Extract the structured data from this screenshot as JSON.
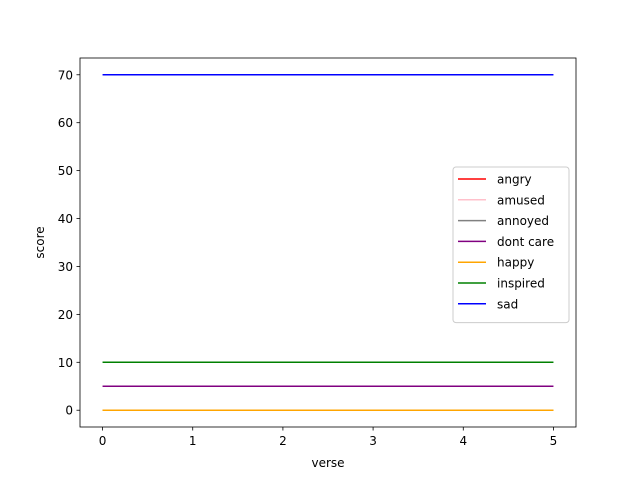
{
  "chart_data": {
    "type": "line",
    "title": "",
    "xlabel": "verse",
    "ylabel": "score",
    "x": [
      0,
      1,
      2,
      3,
      4,
      5
    ],
    "xlim": [
      -0.25,
      5.25
    ],
    "ylim": [
      -3.5,
      73.5
    ],
    "xticks": [
      0,
      1,
      2,
      3,
      4,
      5
    ],
    "yticks": [
      0,
      10,
      20,
      30,
      40,
      50,
      60,
      70
    ],
    "grid": false,
    "legend_position": "center-right",
    "series": [
      {
        "name": "angry",
        "color": "#ff0000",
        "values": [
          0,
          0,
          0,
          0,
          0,
          0
        ]
      },
      {
        "name": "amused",
        "color": "#ffc0cb",
        "values": [
          0,
          0,
          0,
          0,
          0,
          0
        ]
      },
      {
        "name": "annoyed",
        "color": "#808080",
        "values": [
          0,
          0,
          0,
          0,
          0,
          0
        ]
      },
      {
        "name": "dont care",
        "color": "#800080",
        "values": [
          5,
          5,
          5,
          5,
          5,
          5
        ]
      },
      {
        "name": "happy",
        "color": "#ffa500",
        "values": [
          0,
          0,
          0,
          0,
          0,
          0
        ]
      },
      {
        "name": "inspired",
        "color": "#008000",
        "values": [
          10,
          10,
          10,
          10,
          10,
          10
        ]
      },
      {
        "name": "sad",
        "color": "#0000ff",
        "values": [
          70,
          70,
          70,
          70,
          70,
          70
        ]
      }
    ]
  }
}
